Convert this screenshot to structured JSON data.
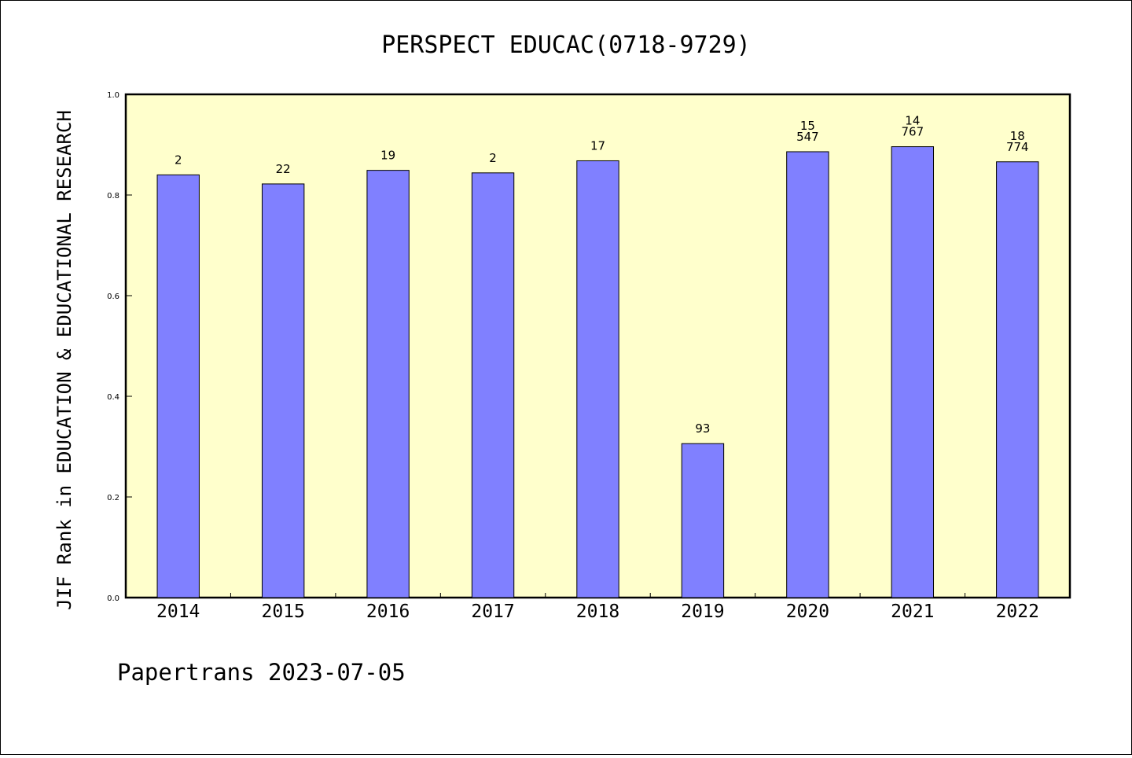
{
  "chart_data": {
    "type": "bar",
    "title": "PERSPECT EDUCAC(0718-9729)",
    "xlabel": "",
    "ylabel": "JIF Rank in EDUCATION & EDUCATIONAL RESEARCH",
    "categories": [
      "2014",
      "2015",
      "2016",
      "2017",
      "2018",
      "2019",
      "2020",
      "2021",
      "2022"
    ],
    "values": [
      0.84,
      0.822,
      0.849,
      0.844,
      0.868,
      0.306,
      0.886,
      0.896,
      0.866
    ],
    "data_labels": [
      [
        "2"
      ],
      [
        "22"
      ],
      [
        "19"
      ],
      [
        "2"
      ],
      [
        "17"
      ],
      [
        "93"
      ],
      [
        "15",
        "547"
      ],
      [
        "14",
        "767"
      ],
      [
        "18",
        "774"
      ]
    ],
    "ylim": [
      0,
      1.0
    ],
    "yticks": [
      "0.0",
      "0.2",
      "0.4",
      "0.6",
      "0.8",
      "1.0"
    ],
    "grid": false,
    "legend": "none",
    "colors": {
      "plot_background": "#ffffcc",
      "bar_fill": "#8080ff",
      "bar_stroke": "#000000"
    }
  },
  "footer": "Papertrans 2023-07-05"
}
